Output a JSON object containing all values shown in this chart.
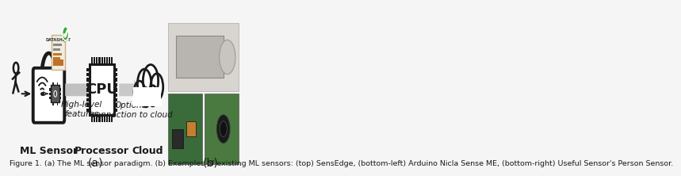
{
  "background_color": "#f5f5f5",
  "dark": "#1a1a1a",
  "gray_arrow": "#b0b0b0",
  "white": "#ffffff",
  "green_check": "#3aaa35",
  "orange_doc": "#c8750a",
  "brown_doc": "#a05010",
  "chip_dark": "#2a2a2a",
  "chip_body": "#404040",
  "lock_lw": 2.8,
  "cpu_lw": 2.2,
  "label_a": "(a)",
  "label_b": "(b)",
  "ml_sensor_label": "ML Sensor",
  "processor_label": "Processor",
  "cloud_label": "Cloud",
  "high_level_label": "High-level\nfeatures",
  "optional_label": "Optional\nconnection to cloud",
  "cpu_text": "CPU",
  "font_size_small": 7.5,
  "font_size_labels": 9,
  "font_size_cpu": 13,
  "font_size_caption": 6.8,
  "caption": "Figure 1. (a) The ML sensor paradigm. (b) Examples of existing ML sensors: (top) SensEdge, (bottom-left) Arduino Nicla Sense ME, (bottom-right) Useful Sensor's Person Sensor."
}
